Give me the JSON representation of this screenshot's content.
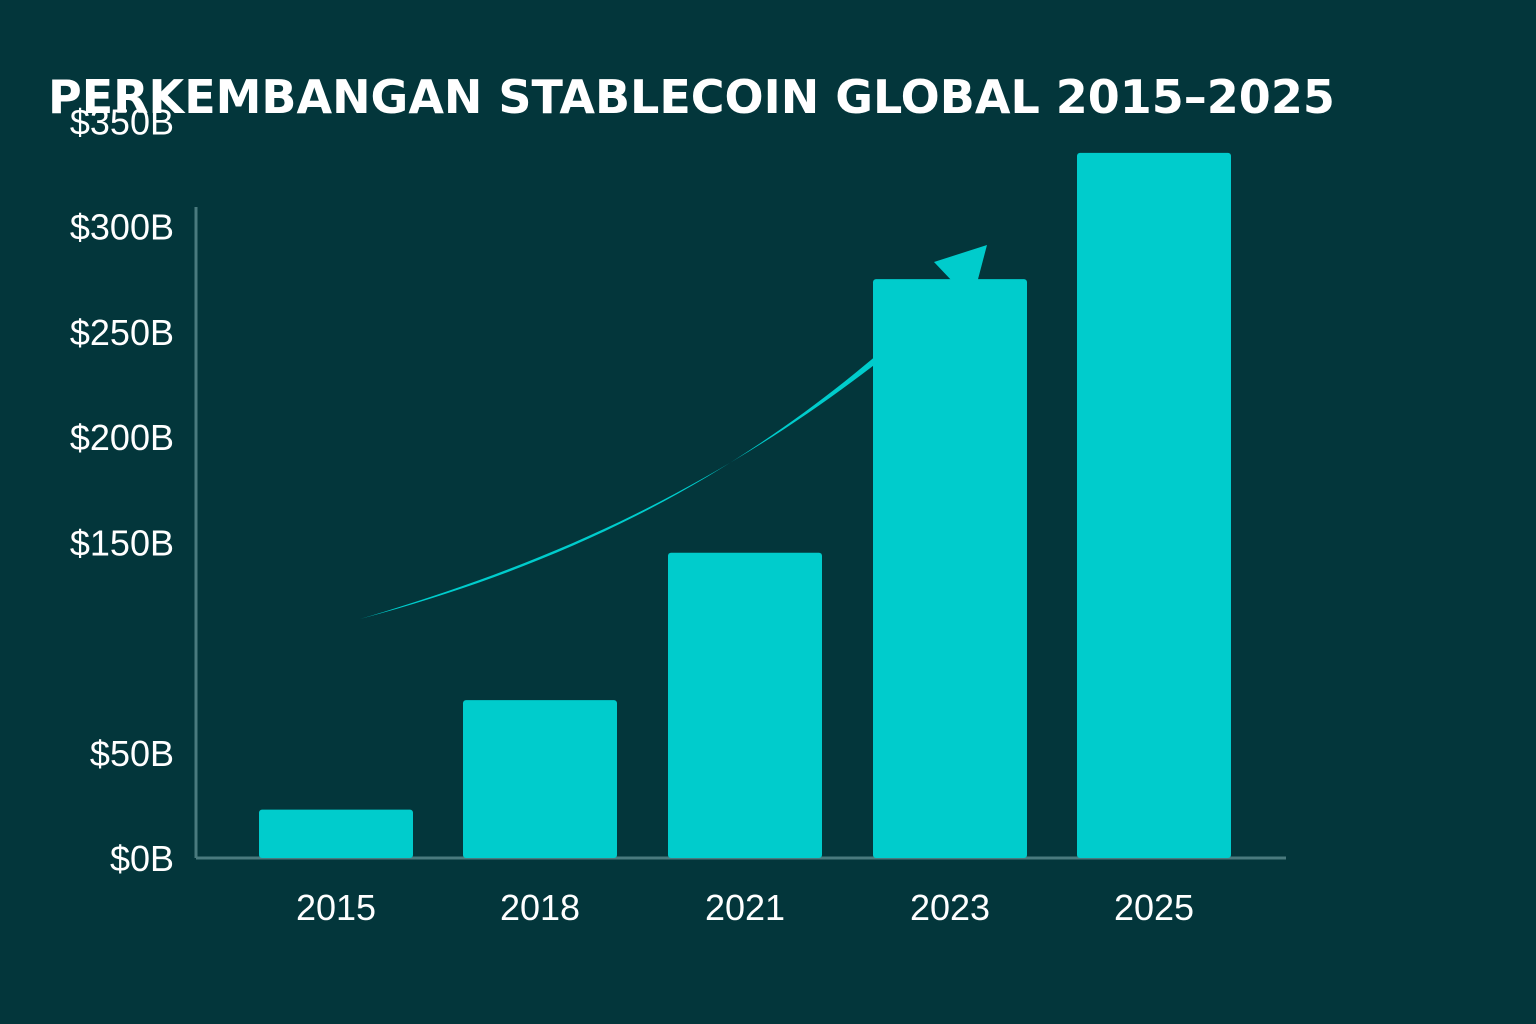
{
  "colors": {
    "background": "#03363b",
    "bar": "#00cccc",
    "axis": "#4a7a7e",
    "text": "#ffffff",
    "arrow": "#00cccc"
  },
  "chart_data": {
    "type": "bar",
    "title": "PERKEMBANGAN STABLECOIN GLOBAL 2015–2025",
    "categories": [
      "2015",
      "2018",
      "2021",
      "2023",
      "2025"
    ],
    "values": [
      23,
      75,
      145,
      275,
      335
    ],
    "xlabel": "",
    "ylabel": "",
    "y_ticks": [
      0,
      50,
      150,
      200,
      250,
      300,
      350
    ],
    "y_tick_labels": [
      "$0B",
      "$50B",
      "$150B",
      "$200B",
      "$250B",
      "$300B",
      "$350B"
    ],
    "grid": false,
    "legend": "none",
    "annotations": [
      {
        "type": "trend-arrow",
        "direction": "up-right"
      }
    ]
  }
}
